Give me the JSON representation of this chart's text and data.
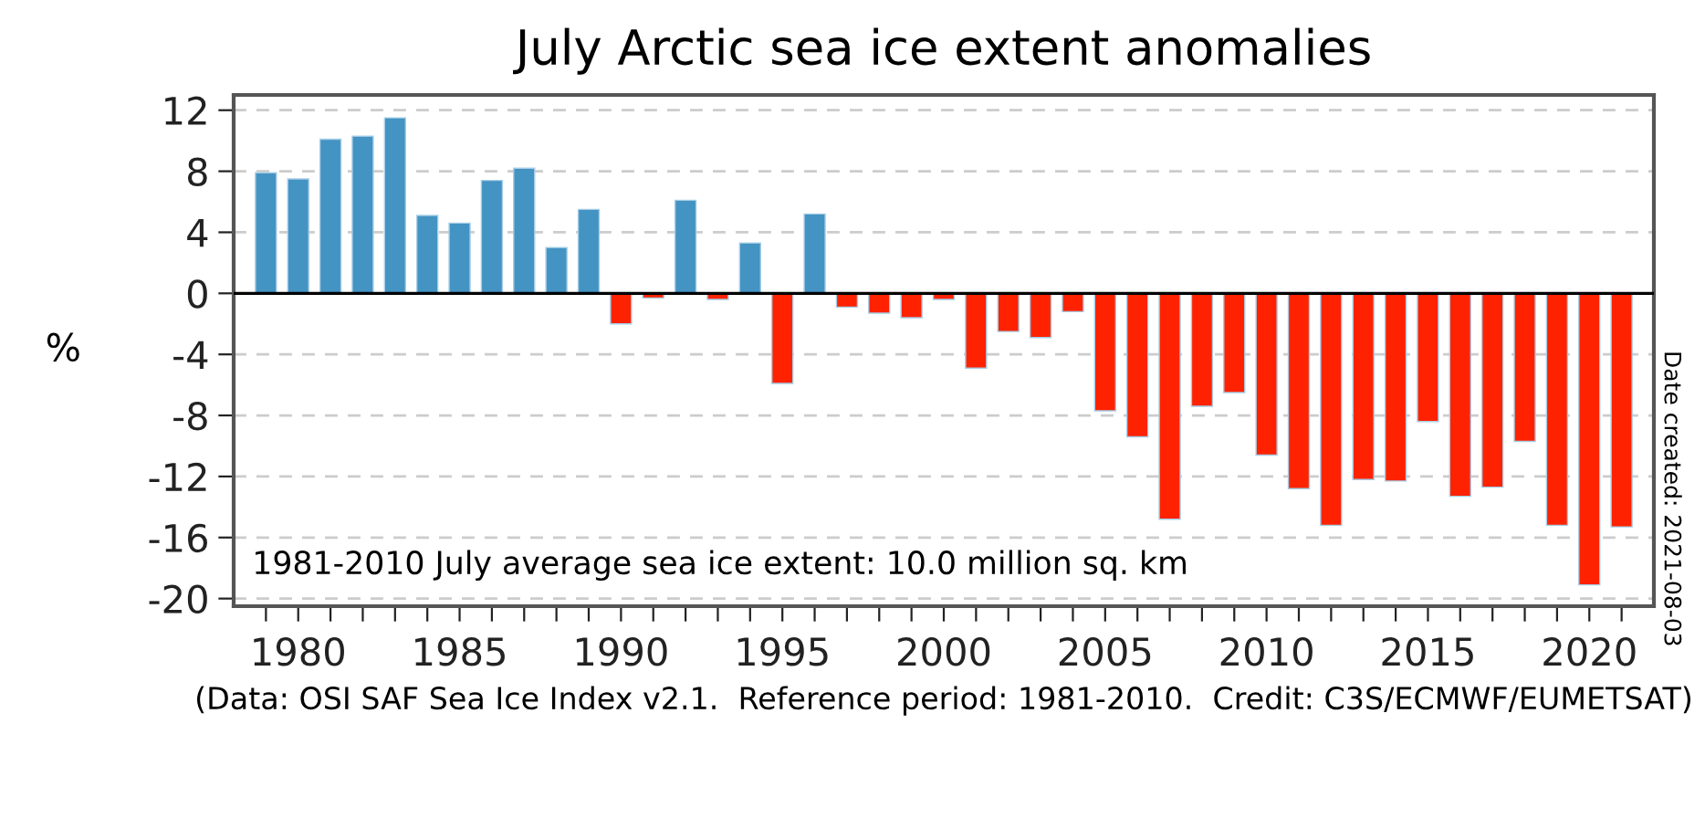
{
  "chart_data": {
    "type": "bar",
    "title": "July Arctic sea ice extent anomalies",
    "ylabel": "%",
    "x": [
      1979,
      1980,
      1981,
      1982,
      1983,
      1984,
      1985,
      1986,
      1987,
      1988,
      1989,
      1990,
      1991,
      1992,
      1993,
      1994,
      1995,
      1996,
      1997,
      1998,
      1999,
      2000,
      2001,
      2002,
      2003,
      2004,
      2005,
      2006,
      2007,
      2008,
      2009,
      2010,
      2011,
      2012,
      2013,
      2014,
      2015,
      2016,
      2017,
      2018,
      2019,
      2020,
      2021
    ],
    "values": [
      7.9,
      7.5,
      10.1,
      10.3,
      11.5,
      5.1,
      4.6,
      7.4,
      8.2,
      3.0,
      5.5,
      -2.0,
      -0.3,
      6.1,
      -0.4,
      3.3,
      -5.9,
      5.2,
      -0.9,
      -1.3,
      -1.6,
      -0.4,
      -4.9,
      -2.5,
      -2.9,
      -1.2,
      -7.7,
      -9.4,
      -14.8,
      -7.4,
      -6.5,
      -10.6,
      -12.8,
      -15.2,
      -12.2,
      -12.3,
      -8.4,
      -13.3,
      -12.7,
      -9.7,
      -15.2,
      -19.1,
      -15.3
    ],
    "colors": [
      "#4393c3",
      "#4393c3",
      "#4393c3",
      "#4393c3",
      "#4393c3",
      "#4393c3",
      "#4393c3",
      "#4393c3",
      "#4393c3",
      "#4393c3",
      "#4393c3",
      "#ff2200",
      "#ff2200",
      "#4393c3",
      "#ff2200",
      "#4393c3",
      "#ff2200",
      "#4393c3",
      "#ff2200",
      "#ff2200",
      "#ff2200",
      "#ff2200",
      "#ff2200",
      "#ff2200",
      "#ff2200",
      "#ff2200",
      "#ff2200",
      "#ff2200",
      "#ff2200",
      "#ff2200",
      "#ff2200",
      "#ff2200",
      "#ff2200",
      "#ff2200",
      "#ff2200",
      "#ff2200",
      "#ff2200",
      "#ff2200",
      "#ff2200",
      "#ff2200",
      "#ff2200",
      "#ff2200",
      "#ff2200"
    ],
    "xlim": [
      1978,
      2022
    ],
    "ylim": [
      -20.5,
      13
    ],
    "xticks": [
      {
        "value": 1979,
        "label": null
      },
      1980,
      {
        "value": 1981,
        "label": null
      },
      {
        "value": 1982,
        "label": null
      },
      {
        "value": 1983,
        "label": null
      },
      {
        "value": 1984,
        "label": null
      },
      1985,
      {
        "value": 1986,
        "label": null
      },
      {
        "value": 1987,
        "label": null
      },
      {
        "value": 1988,
        "label": null
      },
      {
        "value": 1989,
        "label": null
      },
      1990,
      {
        "value": 1991,
        "label": null
      },
      {
        "value": 1992,
        "label": null
      },
      {
        "value": 1993,
        "label": null
      },
      {
        "value": 1994,
        "label": null
      },
      1995,
      {
        "value": 1996,
        "label": null
      },
      {
        "value": 1997,
        "label": null
      },
      {
        "value": 1998,
        "label": null
      },
      {
        "value": 1999,
        "label": null
      },
      2000,
      {
        "value": 2001,
        "label": null
      },
      {
        "value": 2002,
        "label": null
      },
      {
        "value": 2003,
        "label": null
      },
      {
        "value": 2004,
        "label": null
      },
      2005,
      {
        "value": 2006,
        "label": null
      },
      {
        "value": 2007,
        "label": null
      },
      {
        "value": 2008,
        "label": null
      },
      {
        "value": 2009,
        "label": null
      },
      2010,
      {
        "value": 2011,
        "label": null
      },
      {
        "value": 2012,
        "label": null
      },
      {
        "value": 2013,
        "label": null
      },
      {
        "value": 2014,
        "label": null
      },
      2015,
      {
        "value": 2016,
        "label": null
      },
      {
        "value": 2017,
        "label": null
      },
      {
        "value": 2018,
        "label": null
      },
      {
        "value": 2019,
        "label": null
      },
      2020,
      {
        "value": 2021,
        "label": null
      }
    ],
    "yticks": [
      12,
      8,
      4,
      0,
      -4,
      -8,
      -12,
      -16,
      -20
    ],
    "grid": "y",
    "ref_lines": [
      {
        "axis": "y",
        "value": 0,
        "color": "#000000",
        "line_style": "solid"
      }
    ],
    "annotations": [
      "1981-2010 July average sea ice extent: 10.0 million sq. km",
      "(Data: OSI SAF Sea Ice Index v2.1.  Reference period: 1981-2010.  Credit: C3S/ECMWF/EUMETSAT)",
      "Date created: 2021-08-03"
    ]
  }
}
